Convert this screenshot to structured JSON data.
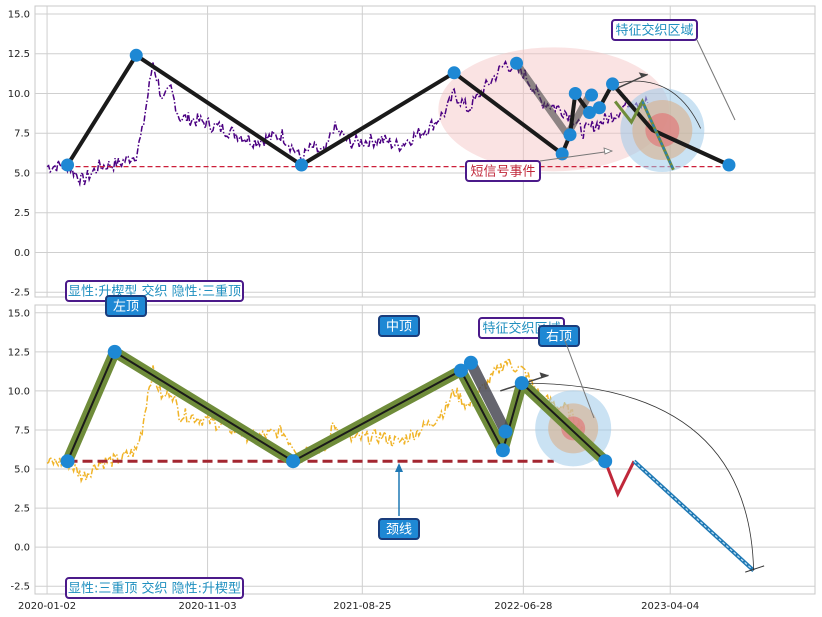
{
  "chart_data": [
    {
      "type": "line",
      "panel": "top",
      "ylim": [
        -2.8,
        15.5
      ],
      "yticks": [
        "-2.5",
        "0.0",
        "2.5",
        "5.0",
        "7.5",
        "10.0",
        "12.5",
        "15.0"
      ],
      "ytick_values": [
        -2.5,
        0,
        2.5,
        5,
        7.5,
        10,
        12.5,
        15
      ],
      "grid": true,
      "price_color": "#4b0082",
      "price_style": "dash-dot",
      "price_anchors": [
        [
          "2020-01-02",
          5.4
        ],
        [
          "2020-02-10",
          5.5
        ],
        [
          "2020-03-10",
          4.5
        ],
        [
          "2020-04-10",
          5.4
        ],
        [
          "2020-05-20",
          5.6
        ],
        [
          "2020-06-20",
          6.2
        ],
        [
          "2020-07-01",
          7.5
        ],
        [
          "2020-07-15",
          10.5
        ],
        [
          "2020-07-22",
          12.0
        ],
        [
          "2020-07-29",
          11.0
        ],
        [
          "2020-08-10",
          9.5
        ],
        [
          "2020-08-25",
          10.3
        ],
        [
          "2020-09-10",
          8.5
        ],
        [
          "2020-10-15",
          8.3
        ],
        [
          "2020-12-01",
          7.8
        ],
        [
          "2021-02-01",
          7.0
        ],
        [
          "2021-03-25",
          7.4
        ],
        [
          "2021-05-01",
          5.9
        ],
        [
          "2021-05-20",
          6.6
        ],
        [
          "2021-06-15",
          6.2
        ],
        [
          "2021-07-01",
          7.9
        ],
        [
          "2021-08-01",
          6.9
        ],
        [
          "2021-10-01",
          7.1
        ],
        [
          "2021-11-01",
          6.7
        ],
        [
          "2022-01-01",
          7.9
        ],
        [
          "2022-02-01",
          8.9
        ],
        [
          "2022-02-16",
          10.0
        ],
        [
          "2022-03-15",
          9.0
        ],
        [
          "2022-04-15",
          10.3
        ],
        [
          "2022-05-25",
          11.9
        ],
        [
          "2022-07-01",
          11.2
        ],
        [
          "2022-08-01",
          9.5
        ],
        [
          "2022-09-15",
          8.9
        ],
        [
          "2022-10-20",
          7.6
        ],
        [
          "2022-12-15",
          8.6
        ],
        [
          "2023-01-20",
          9.6
        ],
        [
          "2023-02-20",
          9.4
        ]
      ],
      "baseline": {
        "y": 5.4,
        "x_start": "2020-02-10",
        "x_end": "2023-07-25",
        "color": "#cc1f3a"
      },
      "main_path": [
        [
          "2020-02-10",
          5.5
        ],
        [
          "2020-06-20",
          12.4
        ],
        [
          "2021-05-01",
          5.5
        ],
        [
          "2022-02-16",
          11.3
        ],
        [
          "2022-09-10",
          6.2
        ],
        [
          "2022-09-25",
          7.4
        ],
        [
          "2022-10-05",
          10.0
        ],
        [
          "2022-11-01",
          8.8
        ],
        [
          "2022-11-20",
          9.1
        ],
        [
          "2022-12-15",
          10.6
        ],
        [
          "2023-03-01",
          7.7
        ],
        [
          "2023-07-25",
          5.5
        ]
      ],
      "upper_path": [
        [
          "2022-06-15",
          11.9
        ],
        [
          "2022-09-20",
          7.4
        ],
        [
          "2022-11-01",
          9.9
        ]
      ],
      "markers": [
        [
          "2020-02-10",
          5.5
        ],
        [
          "2020-06-20",
          12.4
        ],
        [
          "2021-05-01",
          5.5
        ],
        [
          "2022-02-16",
          11.3
        ],
        [
          "2022-06-15",
          11.9
        ],
        [
          "2022-09-10",
          6.2
        ],
        [
          "2022-09-25",
          7.4
        ],
        [
          "2022-10-05",
          10.0
        ],
        [
          "2022-11-01",
          8.8
        ],
        [
          "2022-11-05",
          9.9
        ],
        [
          "2022-11-20",
          9.1
        ],
        [
          "2022-12-15",
          10.6
        ],
        [
          "2023-07-25",
          5.5
        ]
      ],
      "ellipse": {
        "cx": "2022-08-25",
        "cy": 9.0,
        "rx_days": 220,
        "ry": 3.9,
        "color": "#f4c2c2"
      },
      "target": {
        "x": "2023-03-20",
        "y": 7.7
      },
      "annotations": {
        "feature_zone": "特征交织区域",
        "short_signal": "短信号事件",
        "legend": "显性:升楔型 交织 隐性:三重顶"
      }
    },
    {
      "type": "line",
      "panel": "bottom",
      "ylim": [
        -3.0,
        15.5
      ],
      "yticks": [
        "-2.5",
        "0.0",
        "2.5",
        "5.0",
        "7.5",
        "10.0",
        "12.5",
        "15.0"
      ],
      "ytick_values": [
        -2.5,
        0,
        2.5,
        5,
        7.5,
        10,
        12.5,
        15
      ],
      "xticks": [
        "2020-01-02",
        "2020-11-03",
        "2021-08-25",
        "2022-06-28",
        "2023-04-04"
      ],
      "grid": true,
      "price_color": "#f0b429",
      "price_style": "dash-dot",
      "price_anchors": [
        [
          "2020-01-02",
          5.4
        ],
        [
          "2020-02-10",
          5.5
        ],
        [
          "2020-03-10",
          4.5
        ],
        [
          "2020-04-10",
          5.4
        ],
        [
          "2020-05-20",
          5.6
        ],
        [
          "2020-06-20",
          6.2
        ],
        [
          "2020-07-01",
          7.5
        ],
        [
          "2020-07-15",
          10.5
        ],
        [
          "2020-07-22",
          11.2
        ],
        [
          "2020-07-29",
          10.5
        ],
        [
          "2020-08-10",
          9.5
        ],
        [
          "2020-08-25",
          10.1
        ],
        [
          "2020-09-10",
          8.5
        ],
        [
          "2020-10-15",
          8.3
        ],
        [
          "2020-12-01",
          7.8
        ],
        [
          "2021-02-01",
          7.0
        ],
        [
          "2021-03-25",
          7.4
        ],
        [
          "2021-05-01",
          5.9
        ],
        [
          "2021-05-20",
          6.6
        ],
        [
          "2021-06-15",
          6.2
        ],
        [
          "2021-07-01",
          7.9
        ],
        [
          "2021-08-01",
          6.9
        ],
        [
          "2021-10-01",
          7.1
        ],
        [
          "2021-11-01",
          6.7
        ],
        [
          "2022-01-01",
          7.9
        ],
        [
          "2022-02-01",
          8.9
        ],
        [
          "2022-02-16",
          10.0
        ],
        [
          "2022-03-15",
          9.0
        ],
        [
          "2022-04-15",
          10.3
        ],
        [
          "2022-05-25",
          11.9
        ],
        [
          "2022-07-01",
          11.2
        ],
        [
          "2022-08-01",
          9.5
        ],
        [
          "2022-09-15",
          8.9
        ],
        [
          "2022-10-20",
          7.6
        ]
      ],
      "baseline": {
        "y": 5.5,
        "x_start": "2020-02-10",
        "x_end": "2022-08-25",
        "color": "#a32630"
      },
      "main_path": [
        [
          "2020-02-10",
          5.5
        ],
        [
          "2020-05-10",
          12.5
        ],
        [
          "2021-04-15",
          5.5
        ],
        [
          "2022-03-01",
          11.3
        ],
        [
          "2022-05-20",
          6.2
        ],
        [
          "2022-06-25",
          10.5
        ],
        [
          "2022-12-01",
          5.5
        ]
      ],
      "dark_segment": [
        [
          "2022-03-20",
          11.8
        ],
        [
          "2022-05-25",
          7.4
        ]
      ],
      "projection": [
        [
          "2022-12-01",
          5.5
        ],
        [
          "2022-12-25",
          3.4
        ],
        [
          "2023-01-25",
          5.5
        ],
        [
          "2023-09-10",
          -1.5
        ]
      ],
      "markers": [
        [
          "2020-02-10",
          5.5
        ],
        [
          "2020-05-10",
          12.5
        ],
        [
          "2021-04-15",
          5.5
        ],
        [
          "2022-03-01",
          11.3
        ],
        [
          "2022-03-20",
          11.8
        ],
        [
          "2022-05-20",
          6.2
        ],
        [
          "2022-05-25",
          7.4
        ],
        [
          "2022-06-25",
          10.5
        ],
        [
          "2022-12-01",
          5.5
        ]
      ],
      "target": {
        "x": "2022-10-01",
        "y": 7.6
      },
      "annotations": {
        "left_top": "左顶",
        "mid_top": "中顶",
        "right_top": "右顶",
        "neckline": "颈线",
        "feature_zone": "特征交织区域",
        "legend": "显性:三重顶 交织 隐性:升楔型"
      }
    }
  ],
  "colors": {
    "grid": "#cfcfcf",
    "axis_bg": "#ffffff",
    "main_line": "#1a1a1a",
    "olive": "#6f8c3a",
    "marker": "#1e88d4",
    "pill_border": "#4b1a8a",
    "pill_text": "#1f8fbf",
    "blue_pill_fill": "#1e88d4",
    "red_text": "#c0283a"
  }
}
